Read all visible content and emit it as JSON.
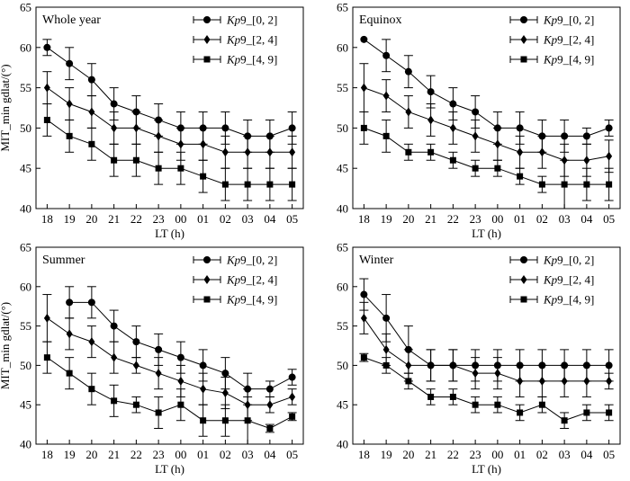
{
  "chart_data": [
    {
      "type": "line",
      "title": "Whole year",
      "xlabel": "LT (h)",
      "ylabel": "MIT_min gdlat/(°)",
      "categories": [
        "18",
        "19",
        "20",
        "21",
        "22",
        "23",
        "00",
        "01",
        "02",
        "03",
        "04",
        "05"
      ],
      "ylim": [
        40,
        65
      ],
      "yticks": [
        40,
        45,
        50,
        55,
        60,
        65
      ],
      "legend_position": "top-right",
      "series": [
        {
          "name_italic": "Kp",
          "name_rest": "9_[0, 2]",
          "marker": "circle",
          "values": [
            60,
            58,
            56,
            53,
            52,
            51,
            50,
            50,
            50,
            49,
            49,
            50
          ],
          "errors": [
            1,
            2,
            2,
            2,
            2,
            2,
            2,
            2,
            2,
            2,
            2,
            2
          ]
        },
        {
          "name_italic": "Kp",
          "name_rest": "9_[2, 4]",
          "marker": "diamond",
          "values": [
            55,
            53,
            52,
            50,
            50,
            49,
            48,
            48,
            47,
            47,
            47,
            47
          ],
          "errors": [
            2,
            2,
            2,
            2,
            2,
            2,
            2,
            2,
            2,
            2,
            2,
            2
          ]
        },
        {
          "name_italic": "Kp",
          "name_rest": "9_[4, 9]",
          "marker": "square",
          "values": [
            51,
            49,
            48,
            46,
            46,
            45,
            45,
            44,
            43,
            43,
            43,
            43
          ],
          "errors": [
            2,
            2,
            2,
            2,
            2,
            2,
            2,
            2,
            2,
            2,
            2,
            2
          ]
        }
      ]
    },
    {
      "type": "line",
      "title": "Equinox",
      "xlabel": "LT (h)",
      "ylabel": "",
      "categories": [
        "18",
        "19",
        "20",
        "21",
        "22",
        "23",
        "00",
        "01",
        "02",
        "03",
        "04",
        "05"
      ],
      "ylim": [
        40,
        65
      ],
      "yticks": [
        40,
        45,
        50,
        55,
        60,
        65
      ],
      "legend_position": "top-right",
      "series": [
        {
          "name_italic": "Kp",
          "name_rest": "9_[0, 2]",
          "marker": "circle",
          "values": [
            61,
            59,
            57,
            54.5,
            53,
            52,
            50,
            50,
            49,
            49,
            49,
            50
          ],
          "errors": [
            0,
            2,
            2,
            2,
            2,
            2,
            2,
            2,
            2,
            2,
            1,
            1
          ]
        },
        {
          "name_italic": "Kp",
          "name_rest": "9_[2, 4]",
          "marker": "diamond",
          "values": [
            55,
            54,
            52,
            51,
            50,
            49,
            48,
            47,
            47,
            46,
            46,
            46.5
          ],
          "errors": [
            3,
            2,
            2,
            2,
            2,
            2,
            2,
            2,
            2,
            2,
            2,
            2
          ]
        },
        {
          "name_italic": "Kp",
          "name_rest": "9_[4, 9]",
          "marker": "square",
          "values": [
            50,
            49,
            47,
            47,
            46,
            45,
            45,
            44,
            43,
            43,
            43,
            43
          ],
          "errors": [
            2,
            2,
            1,
            1,
            1,
            1,
            1,
            1,
            1,
            3,
            2,
            2
          ]
        }
      ]
    },
    {
      "type": "line",
      "title": "Summer",
      "xlabel": "LT (h)",
      "ylabel": "MIT_min gdlat/(°)",
      "categories": [
        "18",
        "19",
        "20",
        "21",
        "22",
        "23",
        "00",
        "01",
        "02",
        "03",
        "04",
        "05"
      ],
      "ylim": [
        40,
        65
      ],
      "yticks": [
        40,
        45,
        50,
        55,
        60,
        65
      ],
      "legend_position": "top-right",
      "series": [
        {
          "name_italic": "Kp",
          "name_rest": "9_[0, 2]",
          "marker": "circle",
          "values": [
            null,
            58,
            58,
            55,
            53,
            52,
            51,
            50,
            49,
            47,
            47,
            48.5
          ],
          "errors": [
            0,
            2,
            2,
            2,
            2,
            2,
            2,
            2,
            2,
            2,
            1,
            1
          ]
        },
        {
          "name_italic": "Kp",
          "name_rest": "9_[2, 4]",
          "marker": "diamond",
          "values": [
            56,
            54,
            53,
            51,
            50,
            49,
            48,
            47,
            46.5,
            45,
            45,
            46
          ],
          "errors": [
            3,
            2,
            2,
            2,
            1,
            2,
            2,
            2,
            2,
            2,
            1,
            1
          ]
        },
        {
          "name_italic": "Kp",
          "name_rest": "9_[4, 9]",
          "marker": "square",
          "values": [
            51,
            49,
            47,
            45.5,
            45,
            44,
            45,
            43,
            43,
            43,
            42,
            43.5
          ],
          "errors": [
            2,
            2,
            2,
            2,
            1,
            2,
            2,
            2,
            2,
            3,
            0.5,
            0.5
          ]
        }
      ]
    },
    {
      "type": "line",
      "title": "Winter",
      "xlabel": "LT (h)",
      "ylabel": "",
      "categories": [
        "18",
        "19",
        "20",
        "21",
        "22",
        "23",
        "00",
        "01",
        "02",
        "03",
        "04",
        "05"
      ],
      "ylim": [
        40,
        65
      ],
      "yticks": [
        40,
        45,
        50,
        55,
        60,
        65
      ],
      "legend_position": "top-right",
      "series": [
        {
          "name_italic": "Kp",
          "name_rest": "9_[0, 2]",
          "marker": "circle",
          "values": [
            59,
            56,
            52,
            50,
            50,
            50,
            50,
            50,
            50,
            50,
            50,
            50
          ],
          "errors": [
            2,
            3,
            3,
            2,
            2,
            2,
            2,
            2,
            2,
            2,
            2,
            2
          ]
        },
        {
          "name_italic": "Kp",
          "name_rest": "9_[2, 4]",
          "marker": "diamond",
          "values": [
            56,
            52,
            50,
            50,
            50,
            49,
            49,
            48,
            48,
            48,
            48,
            48
          ],
          "errors": [
            2,
            2,
            2,
            2,
            2,
            2,
            2,
            2,
            2,
            2,
            2,
            1
          ]
        },
        {
          "name_italic": "Kp",
          "name_rest": "9_[4, 9]",
          "marker": "square",
          "values": [
            51,
            50,
            48,
            46,
            46,
            45,
            45,
            44,
            45,
            43,
            44,
            44
          ],
          "errors": [
            0.5,
            1,
            1,
            1,
            1,
            1,
            1,
            1,
            1,
            1,
            1,
            1
          ]
        }
      ]
    }
  ]
}
